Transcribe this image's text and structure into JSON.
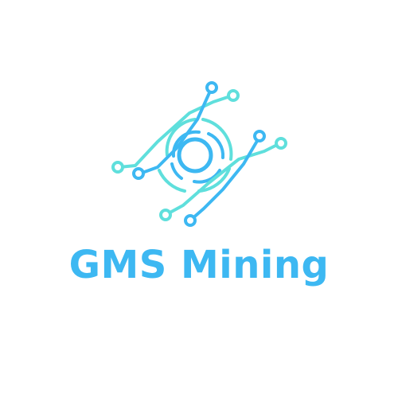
{
  "brand": {
    "name": "GMS Mining",
    "icon": "circuit-ring-icon"
  },
  "colors": {
    "background": "#ffffff",
    "primary": "#3db8f2",
    "secondary": "#5fdfdc"
  }
}
